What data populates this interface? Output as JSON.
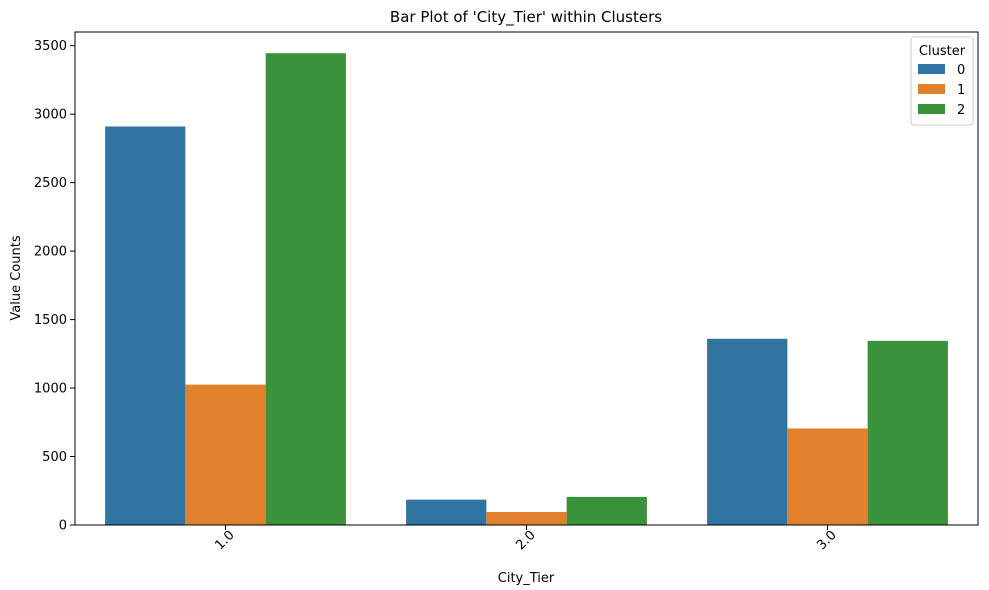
{
  "chart_data": {
    "type": "bar",
    "title": "Bar Plot of 'City_Tier' within Clusters",
    "xlabel": "City_Tier",
    "ylabel": "Value Counts",
    "categories": [
      "1.0",
      "2.0",
      "3.0"
    ],
    "series": [
      {
        "name": "0",
        "values": [
          2910,
          185,
          1360
        ],
        "color": "#3274a1"
      },
      {
        "name": "1",
        "values": [
          1025,
          95,
          705
        ],
        "color": "#e1812c"
      },
      {
        "name": "2",
        "values": [
          3445,
          205,
          1345
        ],
        "color": "#3a923a"
      }
    ],
    "ylim": [
      0,
      3600
    ],
    "yticks": [
      0,
      500,
      1000,
      1500,
      2000,
      2500,
      3000,
      3500
    ],
    "legend": {
      "title": "Cluster",
      "placement": "top-right"
    },
    "grid": false,
    "xtick_rotation": 45
  }
}
